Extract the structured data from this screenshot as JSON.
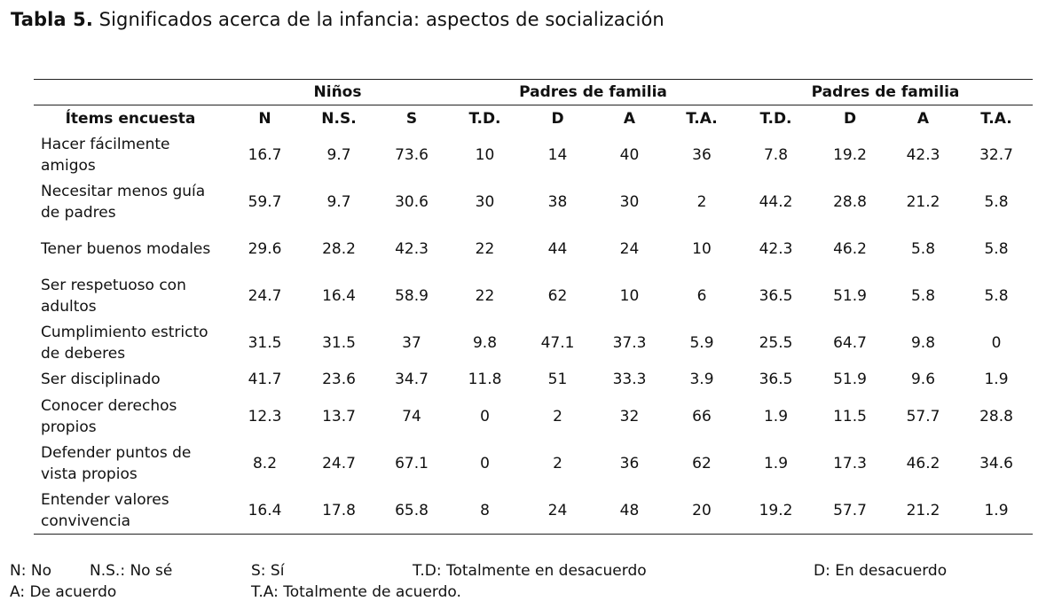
{
  "caption": {
    "label": "Tabla 5.",
    "text": "Significados acerca de la infancia: aspectos de socialización"
  },
  "table": {
    "group_headers": [
      "Niños",
      "Padres de familia",
      "Padres de familia"
    ],
    "columns": [
      "Ítems encuesta",
      "N",
      "N.S.",
      "S",
      "T.D.",
      "D",
      "A",
      "T.A.",
      "T.D.",
      "D",
      "A",
      "T.A."
    ],
    "rows": [
      {
        "item": "Hacer fácilmente amigos",
        "values": [
          "16.7",
          "9.7",
          "73.6",
          "10",
          "14",
          "40",
          "36",
          "7.8",
          "19.2",
          "42.3",
          "32.7"
        ]
      },
      {
        "item": "Necesitar menos guía de padres",
        "values": [
          "59.7",
          "9.7",
          "30.6",
          "30",
          "38",
          "30",
          "2",
          "44.2",
          "28.8",
          "21.2",
          "5.8"
        ]
      },
      {
        "item": "Tener buenos modales",
        "values": [
          "29.6",
          "28.2",
          "42.3",
          "22",
          "44",
          "24",
          "10",
          "42.3",
          "46.2",
          "5.8",
          "5.8"
        ]
      },
      {
        "item": "Ser respetuoso con adultos",
        "values": [
          "24.7",
          "16.4",
          "58.9",
          "22",
          "62",
          "10",
          "6",
          "36.5",
          "51.9",
          "5.8",
          "5.8"
        ]
      },
      {
        "item": "Cumplimiento estricto de deberes",
        "values": [
          "31.5",
          "31.5",
          "37",
          "9.8",
          "47.1",
          "37.3",
          "5.9",
          "25.5",
          "64.7",
          "9.8",
          "0"
        ]
      },
      {
        "item": "Ser disciplinado",
        "values": [
          "41.7",
          "23.6",
          "34.7",
          "11.8",
          "51",
          "33.3",
          "3.9",
          "36.5",
          "51.9",
          "9.6",
          "1.9"
        ]
      },
      {
        "item": "Conocer derechos propios",
        "values": [
          "12.3",
          "13.7",
          "74",
          "0",
          "2",
          "32",
          "66",
          "1.9",
          "11.5",
          "57.7",
          "28.8"
        ]
      },
      {
        "item": "Defender puntos de vista propios",
        "values": [
          "8.2",
          "24.7",
          "67.1",
          "0",
          "2",
          "36",
          "62",
          "1.9",
          "17.3",
          "46.2",
          "34.6"
        ]
      },
      {
        "item": "Entender valores convivencia",
        "values": [
          "16.4",
          "17.8",
          "65.8",
          "8",
          "24",
          "48",
          "20",
          "19.2",
          "57.7",
          "21.2",
          "1.9"
        ]
      }
    ]
  },
  "legend": {
    "n": "N: No",
    "ns": "N.S.: No sé",
    "s": "S: Sí",
    "td": "T.D: Totalmente en desacuerdo",
    "d": "D: En desacuerdo",
    "a": "A: De acuerdo",
    "ta": "T.A: Totalmente de acuerdo."
  }
}
